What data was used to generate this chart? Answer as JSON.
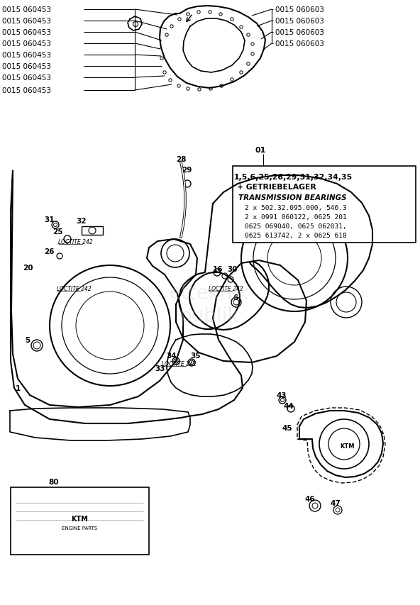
{
  "bg_color": "#ffffff",
  "fig_width": 5.92,
  "fig_height": 8.54,
  "dpi": 100,
  "left_labels": [
    "0015 060453",
    "0015 060453",
    "0015 060453",
    "0015 060453",
    "0015 060453",
    "0015 060453",
    "0015 060453",
    "0015 060453"
  ],
  "right_labels": [
    "0015 060603",
    "0015 060603",
    "0015 060603",
    "0015 060603"
  ],
  "info_box_line1": "1,5,6,25,26,29,31,32,34,35",
  "info_box_line2": "+ GETRIEBELAGER",
  "info_box_line3": "TRANSMISSION BEARINGS",
  "info_box_line4": "2 x 502.32.095.000, 546.3",
  "info_box_line5": "2 x 0991 060122, 0625 201",
  "info_box_line6": "0625 069040, 0625 062031,",
  "info_box_line7": "0625 613742, 2 x 0625 618"
}
